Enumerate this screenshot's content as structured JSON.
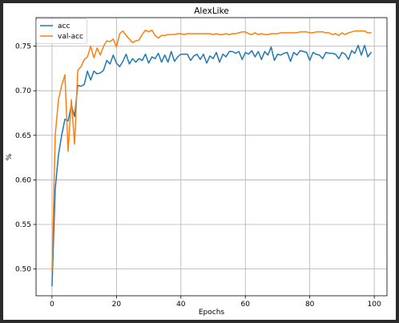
{
  "colors": {
    "acc": "#1f77b4",
    "val_acc": "#ff7f0e",
    "grid": "#b0b0b0"
  },
  "chart_data": {
    "type": "line",
    "title": "AlexLike",
    "xlabel": "Epochs",
    "ylabel": "%",
    "xlim": [
      -4.95,
      103.95
    ],
    "ylim": [
      0.47,
      0.782
    ],
    "xticks": [
      0,
      20,
      40,
      60,
      80,
      100
    ],
    "yticks": [
      0.5,
      0.55,
      0.6,
      0.65,
      0.7,
      0.75
    ],
    "xtick_labels": [
      "0",
      "20",
      "40",
      "60",
      "80",
      "100"
    ],
    "ytick_labels": [
      "0.50",
      "0.55",
      "0.60",
      "0.65",
      "0.70",
      "0.75"
    ],
    "grid": true,
    "legend_position": "top-left",
    "x": [
      0,
      1,
      2,
      3,
      4,
      5,
      6,
      7,
      8,
      9,
      10,
      11,
      12,
      13,
      14,
      15,
      16,
      17,
      18,
      19,
      20,
      21,
      22,
      23,
      24,
      25,
      26,
      27,
      28,
      29,
      30,
      31,
      32,
      33,
      34,
      35,
      36,
      37,
      38,
      39,
      40,
      41,
      42,
      43,
      44,
      45,
      46,
      47,
      48,
      49,
      50,
      51,
      52,
      53,
      54,
      55,
      56,
      57,
      58,
      59,
      60,
      61,
      62,
      63,
      64,
      65,
      66,
      67,
      68,
      69,
      70,
      71,
      72,
      73,
      74,
      75,
      76,
      77,
      78,
      79,
      80,
      81,
      82,
      83,
      84,
      85,
      86,
      87,
      88,
      89,
      90,
      91,
      92,
      93,
      94,
      95,
      96,
      97,
      98,
      99
    ],
    "series": [
      {
        "name": "acc",
        "color_key": "acc",
        "values": [
          0.481,
          0.59,
          0.628,
          0.65,
          0.668,
          0.666,
          0.684,
          0.671,
          0.706,
          0.705,
          0.707,
          0.722,
          0.712,
          0.722,
          0.719,
          0.72,
          0.723,
          0.734,
          0.73,
          0.74,
          0.731,
          0.727,
          0.733,
          0.741,
          0.73,
          0.736,
          0.732,
          0.736,
          0.734,
          0.741,
          0.731,
          0.738,
          0.736,
          0.742,
          0.732,
          0.74,
          0.732,
          0.744,
          0.733,
          0.738,
          0.741,
          0.741,
          0.741,
          0.734,
          0.739,
          0.741,
          0.735,
          0.741,
          0.731,
          0.739,
          0.736,
          0.743,
          0.732,
          0.741,
          0.738,
          0.744,
          0.744,
          0.742,
          0.744,
          0.735,
          0.743,
          0.741,
          0.745,
          0.738,
          0.744,
          0.735,
          0.744,
          0.74,
          0.749,
          0.734,
          0.741,
          0.74,
          0.742,
          0.743,
          0.733,
          0.743,
          0.74,
          0.745,
          0.744,
          0.743,
          0.734,
          0.743,
          0.741,
          0.74,
          0.736,
          0.743,
          0.742,
          0.742,
          0.741,
          0.736,
          0.743,
          0.741,
          0.735,
          0.745,
          0.742,
          0.751,
          0.74,
          0.751,
          0.738,
          0.743
        ]
      },
      {
        "name": "val-acc",
        "color_key": "val_acc",
        "values": [
          0.498,
          0.65,
          0.69,
          0.706,
          0.718,
          0.632,
          0.69,
          0.64,
          0.723,
          0.727,
          0.735,
          0.738,
          0.75,
          0.737,
          0.748,
          0.74,
          0.75,
          0.756,
          0.755,
          0.758,
          0.749,
          0.764,
          0.767,
          0.762,
          0.758,
          0.754,
          0.756,
          0.757,
          0.763,
          0.768,
          0.766,
          0.768,
          0.762,
          0.759,
          0.762,
          0.762,
          0.763,
          0.763,
          0.763,
          0.764,
          0.764,
          0.763,
          0.764,
          0.764,
          0.764,
          0.764,
          0.764,
          0.764,
          0.764,
          0.764,
          0.763,
          0.764,
          0.763,
          0.763,
          0.764,
          0.763,
          0.764,
          0.764,
          0.765,
          0.766,
          0.766,
          0.764,
          0.763,
          0.765,
          0.763,
          0.764,
          0.763,
          0.763,
          0.764,
          0.764,
          0.764,
          0.765,
          0.765,
          0.765,
          0.765,
          0.765,
          0.765,
          0.766,
          0.766,
          0.766,
          0.765,
          0.765,
          0.766,
          0.766,
          0.766,
          0.765,
          0.765,
          0.763,
          0.764,
          0.762,
          0.765,
          0.763,
          0.765,
          0.766,
          0.767,
          0.767,
          0.767,
          0.767,
          0.765,
          0.765
        ]
      }
    ]
  }
}
